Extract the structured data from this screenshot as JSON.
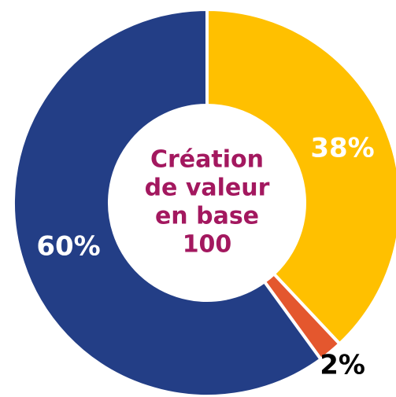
{
  "chart_data": {
    "type": "pie",
    "values": [
      38,
      2,
      60
    ],
    "value_labels": [
      "38%",
      "2%",
      "60%"
    ],
    "colors": [
      "#ffc000",
      "#e4572e",
      "#233e86"
    ],
    "center_text": [
      "Création",
      "de valeur",
      "en base",
      "100"
    ],
    "center_color": "#a3185f"
  }
}
